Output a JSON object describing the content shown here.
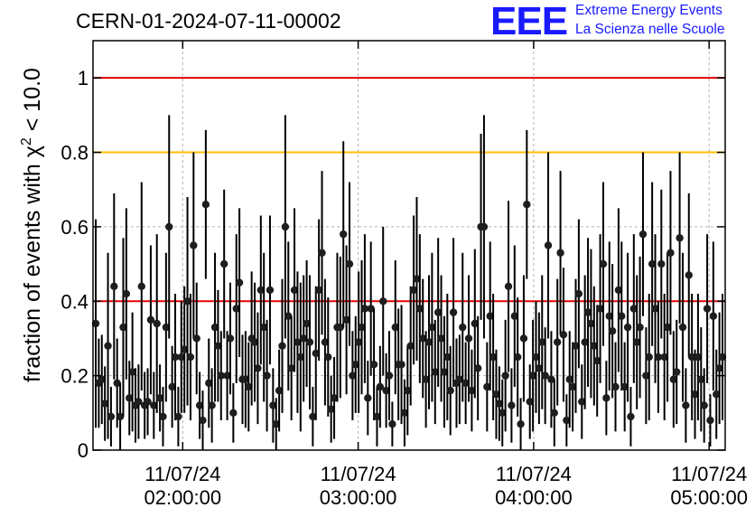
{
  "header": {
    "run_id": "CERN-01-2024-07-11-00002",
    "logo_mark": "EEE",
    "logo_line1": "Extreme Energy Events",
    "logo_line2": "La Scienza nelle Scuole"
  },
  "colors": {
    "logo": "#1a1aff",
    "ref_red": "#e60000",
    "ref_orange": "#ffbf00",
    "grid": "#b3b3b3"
  },
  "chart_data": {
    "type": "scatter",
    "title": "CERN-01-2024-07-11-00002",
    "ylabel_prefix": "fraction of events with χ",
    "ylabel_sup": "2",
    "ylabel_suffix": " < 10.0",
    "xlim": [
      "11/07/24 01:29:20",
      "11/07/24 05:05:30"
    ],
    "ylim": [
      0,
      1.1
    ],
    "yticks": [
      0,
      0.2,
      0.4,
      0.6,
      0.8,
      1
    ],
    "ytick_labels": [
      "0",
      "0.2",
      "0.4",
      "0.6",
      "0.8",
      "1"
    ],
    "xticks": [
      {
        "time": "11/07/24 02:00:00",
        "line1": "11/07/24",
        "line2": "02:00:00"
      },
      {
        "time": "11/07/24 03:00:00",
        "line1": "11/07/24",
        "line2": "03:00:00"
      },
      {
        "time": "11/07/24 04:00:00",
        "line1": "11/07/24",
        "line2": "04:00:00"
      },
      {
        "time": "11/07/24 05:00:00",
        "line1": "11/07/24",
        "line2": "05:00:00"
      }
    ],
    "grid": true,
    "reference_lines": [
      {
        "y": 1.0,
        "color": "#e60000"
      },
      {
        "y": 0.8,
        "color": "#ffbf00"
      },
      {
        "y": 0.4,
        "color": "#e60000"
      }
    ],
    "series": [
      {
        "points": [
          [
            0.34,
            0.28
          ],
          [
            0.18,
            0.12
          ],
          [
            0.19,
            0.12
          ],
          [
            0.125,
            0.1
          ],
          [
            0.28,
            0.25
          ],
          [
            0.09,
            0.08
          ],
          [
            0.44,
            0.25
          ],
          [
            0.18,
            0.12
          ],
          [
            0.09,
            0.09
          ],
          [
            0.33,
            0.24
          ],
          [
            0.42,
            0.23
          ],
          [
            0.14,
            0.1
          ],
          [
            0.21,
            0.16
          ],
          [
            0.12,
            0.1
          ],
          [
            0.13,
            0.1
          ],
          [
            0.44,
            0.28
          ],
          [
            0.12,
            0.09
          ],
          [
            0.13,
            0.09
          ],
          [
            0.35,
            0.2
          ],
          [
            0.12,
            0.09
          ],
          [
            0.34,
            0.24
          ],
          [
            0.14,
            0.09
          ],
          [
            0.09,
            0.08
          ],
          [
            0.33,
            0.2
          ],
          [
            0.6,
            0.3
          ],
          [
            0.17,
            0.11
          ],
          [
            0.25,
            0.17
          ],
          [
            0.09,
            0.08
          ],
          [
            0.25,
            0.15
          ],
          [
            0.27,
            0.17
          ],
          [
            0.4,
            0.28
          ],
          [
            0.25,
            0.17
          ],
          [
            0.55,
            0.25
          ],
          [
            0.3,
            0.15
          ],
          [
            0.12,
            0.09
          ],
          [
            0.08,
            0.08
          ],
          [
            0.66,
            0.2
          ],
          [
            0.18,
            0.12
          ],
          [
            0.12,
            0.1
          ],
          [
            0.33,
            0.2
          ],
          [
            0.28,
            0.15
          ],
          [
            0.2,
            0.12
          ],
          [
            0.5,
            0.2
          ],
          [
            0.2,
            0.12
          ],
          [
            0.3,
            0.15
          ],
          [
            0.1,
            0.08
          ],
          [
            0.38,
            0.2
          ],
          [
            0.45,
            0.2
          ],
          [
            0.19,
            0.12
          ],
          [
            0.19,
            0.13
          ],
          [
            0.17,
            0.12
          ],
          [
            0.3,
            0.18
          ],
          [
            0.29,
            0.16
          ],
          [
            0.22,
            0.15
          ],
          [
            0.43,
            0.2
          ],
          [
            0.33,
            0.2
          ],
          [
            0.2,
            0.15
          ],
          [
            0.43,
            0.2
          ],
          [
            0.12,
            0.1
          ],
          [
            0.07,
            0.07
          ],
          [
            0.16,
            0.11
          ],
          [
            0.28,
            0.18
          ],
          [
            0.6,
            0.3
          ],
          [
            0.36,
            0.2
          ],
          [
            0.22,
            0.14
          ],
          [
            0.43,
            0.22
          ],
          [
            0.29,
            0.19
          ],
          [
            0.25,
            0.2
          ],
          [
            0.3,
            0.17
          ],
          [
            0.34,
            0.17
          ],
          [
            0.29,
            0.18
          ],
          [
            0.09,
            0.08
          ],
          [
            0.26,
            0.18
          ],
          [
            0.43,
            0.19
          ],
          [
            0.53,
            0.22
          ],
          [
            0.29,
            0.17
          ],
          [
            0.25,
            0.16
          ],
          [
            0.11,
            0.09
          ],
          [
            0.14,
            0.11
          ],
          [
            0.33,
            0.2
          ],
          [
            0.33,
            0.19
          ],
          [
            0.58,
            0.25
          ],
          [
            0.35,
            0.2
          ],
          [
            0.5,
            0.22
          ],
          [
            0.2,
            0.12
          ],
          [
            0.23,
            0.13
          ],
          [
            0.29,
            0.19
          ],
          [
            0.33,
            0.18
          ],
          [
            0.38,
            0.2
          ],
          [
            0.14,
            0.1
          ],
          [
            0.38,
            0.18
          ],
          [
            0.23,
            0.15
          ],
          [
            0.09,
            0.08
          ],
          [
            0.17,
            0.11
          ],
          [
            0.4,
            0.2
          ],
          [
            0.16,
            0.1
          ],
          [
            0.2,
            0.12
          ],
          [
            0.07,
            0.06
          ],
          [
            0.33,
            0.18
          ],
          [
            0.23,
            0.15
          ],
          [
            0.23,
            0.16
          ],
          [
            0.1,
            0.09
          ],
          [
            0.16,
            0.12
          ],
          [
            0.28,
            0.16
          ],
          [
            0.43,
            0.2
          ],
          [
            0.46,
            0.22
          ],
          [
            0.38,
            0.2
          ],
          [
            0.3,
            0.16
          ],
          [
            0.19,
            0.13
          ],
          [
            0.29,
            0.18
          ],
          [
            0.33,
            0.2
          ],
          [
            0.21,
            0.14
          ],
          [
            0.37,
            0.2
          ],
          [
            0.3,
            0.17
          ],
          [
            0.21,
            0.15
          ],
          [
            0.25,
            0.17
          ],
          [
            0.16,
            0.12
          ],
          [
            0.37,
            0.2
          ],
          [
            0.18,
            0.12
          ],
          [
            0.19,
            0.12
          ],
          [
            0.33,
            0.2
          ],
          [
            0.18,
            0.11
          ],
          [
            0.3,
            0.17
          ],
          [
            0.16,
            0.11
          ],
          [
            0.34,
            0.2
          ],
          [
            0.22,
            0.14
          ],
          [
            0.6,
            0.25
          ],
          [
            0.6,
            0.3
          ],
          [
            0.17,
            0.12
          ],
          [
            0.36,
            0.2
          ],
          [
            0.25,
            0.17
          ],
          [
            0.15,
            0.12
          ],
          [
            0.125,
            0.1
          ],
          [
            0.1,
            0.09
          ],
          [
            0.2,
            0.15
          ],
          [
            0.44,
            0.23
          ],
          [
            0.12,
            0.1
          ],
          [
            0.36,
            0.19
          ],
          [
            0.25,
            0.16
          ],
          [
            0.07,
            0.07
          ],
          [
            0.3,
            0.17
          ],
          [
            0.66,
            0.2
          ],
          [
            0.13,
            0.1
          ],
          [
            0.2,
            0.15
          ],
          [
            0.25,
            0.15
          ],
          [
            0.22,
            0.15
          ],
          [
            0.29,
            0.18
          ],
          [
            0.2,
            0.13
          ],
          [
            0.55,
            0.25
          ],
          [
            0.19,
            0.13
          ],
          [
            0.1,
            0.09
          ],
          [
            0.29,
            0.17
          ],
          [
            0.53,
            0.22
          ],
          [
            0.31,
            0.18
          ],
          [
            0.08,
            0.07
          ],
          [
            0.19,
            0.13
          ],
          [
            0.17,
            0.12
          ],
          [
            0.28,
            0.18
          ],
          [
            0.42,
            0.2
          ],
          [
            0.13,
            0.1
          ],
          [
            0.29,
            0.18
          ],
          [
            0.37,
            0.2
          ],
          [
            0.34,
            0.2
          ],
          [
            0.28,
            0.16
          ],
          [
            0.24,
            0.15
          ],
          [
            0.38,
            0.2
          ],
          [
            0.5,
            0.22
          ],
          [
            0.14,
            0.1
          ],
          [
            0.36,
            0.2
          ],
          [
            0.32,
            0.18
          ],
          [
            0.17,
            0.12
          ],
          [
            0.43,
            0.22
          ],
          [
            0.36,
            0.2
          ],
          [
            0.17,
            0.12
          ],
          [
            0.33,
            0.2
          ],
          [
            0.09,
            0.08
          ],
          [
            0.38,
            0.2
          ],
          [
            0.29,
            0.18
          ],
          [
            0.33,
            0.19
          ],
          [
            0.58,
            0.22
          ],
          [
            0.2,
            0.13
          ],
          [
            0.25,
            0.17
          ],
          [
            0.5,
            0.22
          ],
          [
            0.38,
            0.2
          ],
          [
            0.25,
            0.15
          ],
          [
            0.5,
            0.2
          ],
          [
            0.25,
            0.17
          ],
          [
            0.33,
            0.2
          ],
          [
            0.53,
            0.22
          ],
          [
            0.19,
            0.13
          ],
          [
            0.21,
            0.14
          ],
          [
            0.57,
            0.23
          ],
          [
            0.33,
            0.2
          ],
          [
            0.12,
            0.1
          ],
          [
            0.47,
            0.22
          ],
          [
            0.25,
            0.17
          ],
          [
            0.15,
            0.12
          ],
          [
            0.25,
            0.17
          ],
          [
            0.19,
            0.14
          ],
          [
            0.12,
            0.1
          ],
          [
            0.38,
            0.2
          ],
          [
            0.08,
            0.07
          ],
          [
            0.36,
            0.2
          ],
          [
            0.15,
            0.12
          ],
          [
            0.22,
            0.15
          ],
          [
            0.25,
            0.17
          ]
        ]
      }
    ]
  }
}
